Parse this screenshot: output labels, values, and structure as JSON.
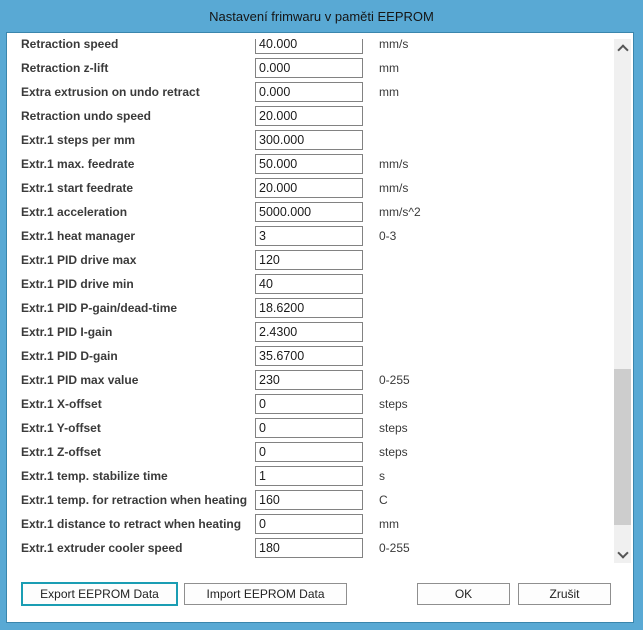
{
  "window": {
    "title": "Nastavení frimwaru v paměti EEPROM"
  },
  "colors": {
    "frame": "#59a9d4",
    "frame_edge": "#3a86ad",
    "focus_border": "#1a9db3",
    "scrollbar_track": "#f0f0f0",
    "scrollbar_thumb": "#cdcdcd",
    "label_text": "#3a3a3a"
  },
  "fields": [
    {
      "label": "Retraction speed",
      "value": "40.000",
      "unit": "mm/s"
    },
    {
      "label": "Retraction z-lift",
      "value": "0.000",
      "unit": "mm"
    },
    {
      "label": "Extra extrusion on undo retract",
      "value": "0.000",
      "unit": "mm"
    },
    {
      "label": "Retraction undo speed",
      "value": "20.000",
      "unit": ""
    },
    {
      "label": "Extr.1 steps per mm",
      "value": "300.000",
      "unit": ""
    },
    {
      "label": "Extr.1 max. feedrate",
      "value": "50.000",
      "unit": "mm/s"
    },
    {
      "label": "Extr.1 start feedrate",
      "value": "20.000",
      "unit": "mm/s"
    },
    {
      "label": "Extr.1 acceleration",
      "value": "5000.000",
      "unit": "mm/s^2"
    },
    {
      "label": "Extr.1 heat manager",
      "value": "3",
      "unit": "0-3"
    },
    {
      "label": "Extr.1 PID drive max",
      "value": "120",
      "unit": ""
    },
    {
      "label": "Extr.1 PID drive min",
      "value": "40",
      "unit": ""
    },
    {
      "label": "Extr.1 PID P-gain/dead-time",
      "value": "18.6200",
      "unit": ""
    },
    {
      "label": "Extr.1 PID I-gain",
      "value": "2.4300",
      "unit": ""
    },
    {
      "label": "Extr.1 PID D-gain",
      "value": "35.6700",
      "unit": ""
    },
    {
      "label": "Extr.1 PID max value",
      "value": "230",
      "unit": "0-255"
    },
    {
      "label": "Extr.1 X-offset",
      "value": "0",
      "unit": "steps"
    },
    {
      "label": "Extr.1 Y-offset",
      "value": "0",
      "unit": "steps"
    },
    {
      "label": "Extr.1 Z-offset",
      "value": "0",
      "unit": "steps"
    },
    {
      "label": "Extr.1 temp. stabilize time",
      "value": "1",
      "unit": "s"
    },
    {
      "label": "Extr.1 temp. for retraction when heating",
      "value": "160",
      "unit": "C"
    },
    {
      "label": "Extr.1 distance to retract when heating",
      "value": "0",
      "unit": "mm"
    },
    {
      "label": "Extr.1 extruder cooler speed",
      "value": "180",
      "unit": "0-255"
    }
  ],
  "buttons": {
    "export_label": "Export EEPROM Data",
    "import_label": "Import EEPROM Data",
    "ok_label": "OK",
    "cancel_label": "Zrušit"
  },
  "scrollbar": {
    "up_icon": "chevron-up",
    "down_icon": "chevron-down"
  }
}
